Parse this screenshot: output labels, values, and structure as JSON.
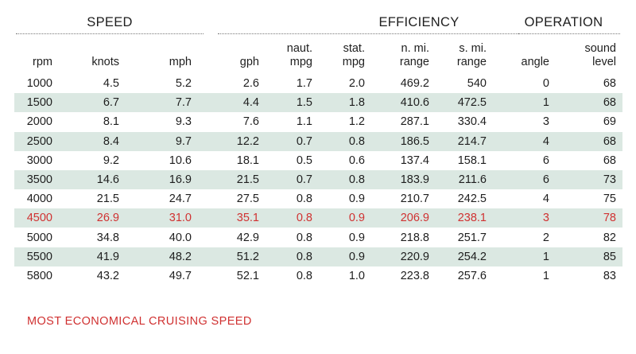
{
  "table": {
    "groups": [
      {
        "key": "speed",
        "label": "SPEED"
      },
      {
        "key": "efficiency",
        "label": "EFFICIENCY"
      },
      {
        "key": "operation",
        "label": "OPERATION"
      }
    ],
    "columns": [
      {
        "key": "rpm",
        "line1": "",
        "line2": "rpm"
      },
      {
        "key": "knots",
        "line1": "",
        "line2": "knots"
      },
      {
        "key": "mph",
        "line1": "",
        "line2": "mph"
      },
      {
        "key": "gph",
        "line1": "",
        "line2": "gph"
      },
      {
        "key": "naut_mpg",
        "line1": "naut.",
        "line2": "mpg"
      },
      {
        "key": "stat_mpg",
        "line1": "stat.",
        "line2": "mpg"
      },
      {
        "key": "n_mi_range",
        "line1": "n. mi.",
        "line2": "range"
      },
      {
        "key": "s_mi_range",
        "line1": "s. mi.",
        "line2": "range"
      },
      {
        "key": "angle",
        "line1": "",
        "line2": "angle"
      },
      {
        "key": "sound_level",
        "line1": "sound",
        "line2": "level"
      }
    ],
    "rows": [
      {
        "shaded": false,
        "highlight": false,
        "cells": [
          "1000",
          "4.5",
          "5.2",
          "2.6",
          "1.7",
          "2.0",
          "469.2",
          "540",
          "0",
          "68"
        ]
      },
      {
        "shaded": true,
        "highlight": false,
        "cells": [
          "1500",
          "6.7",
          "7.7",
          "4.4",
          "1.5",
          "1.8",
          "410.6",
          "472.5",
          "1",
          "68"
        ]
      },
      {
        "shaded": false,
        "highlight": false,
        "cells": [
          "2000",
          "8.1",
          "9.3",
          "7.6",
          "1.1",
          "1.2",
          "287.1",
          "330.4",
          "3",
          "69"
        ]
      },
      {
        "shaded": true,
        "highlight": false,
        "cells": [
          "2500",
          "8.4",
          "9.7",
          "12.2",
          "0.7",
          "0.8",
          "186.5",
          "214.7",
          "4",
          "68"
        ]
      },
      {
        "shaded": false,
        "highlight": false,
        "cells": [
          "3000",
          "9.2",
          "10.6",
          "18.1",
          "0.5",
          "0.6",
          "137.4",
          "158.1",
          "6",
          "68"
        ]
      },
      {
        "shaded": true,
        "highlight": false,
        "cells": [
          "3500",
          "14.6",
          "16.9",
          "21.5",
          "0.7",
          "0.8",
          "183.9",
          "211.6",
          "6",
          "73"
        ]
      },
      {
        "shaded": false,
        "highlight": false,
        "cells": [
          "4000",
          "21.5",
          "24.7",
          "27.5",
          "0.8",
          "0.9",
          "210.7",
          "242.5",
          "4",
          "75"
        ]
      },
      {
        "shaded": true,
        "highlight": true,
        "cells": [
          "4500",
          "26.9",
          "31.0",
          "35.1",
          "0.8",
          "0.9",
          "206.9",
          "238.1",
          "3",
          "78"
        ]
      },
      {
        "shaded": false,
        "highlight": false,
        "cells": [
          "5000",
          "34.8",
          "40.0",
          "42.9",
          "0.8",
          "0.9",
          "218.8",
          "251.7",
          "2",
          "82"
        ]
      },
      {
        "shaded": true,
        "highlight": false,
        "cells": [
          "5500",
          "41.9",
          "48.2",
          "51.2",
          "0.8",
          "0.9",
          "220.9",
          "254.2",
          "1",
          "85"
        ]
      },
      {
        "shaded": false,
        "highlight": false,
        "cells": [
          "5800",
          "43.2",
          "49.7",
          "52.1",
          "0.8",
          "1.0",
          "223.8",
          "257.6",
          "1",
          "83"
        ]
      }
    ],
    "footnote": "MOST ECONOMICAL CRUISING SPEED",
    "colors": {
      "shade": "#dbe8e2",
      "highlight": "#d03131",
      "text": "#1e1e1e"
    }
  }
}
